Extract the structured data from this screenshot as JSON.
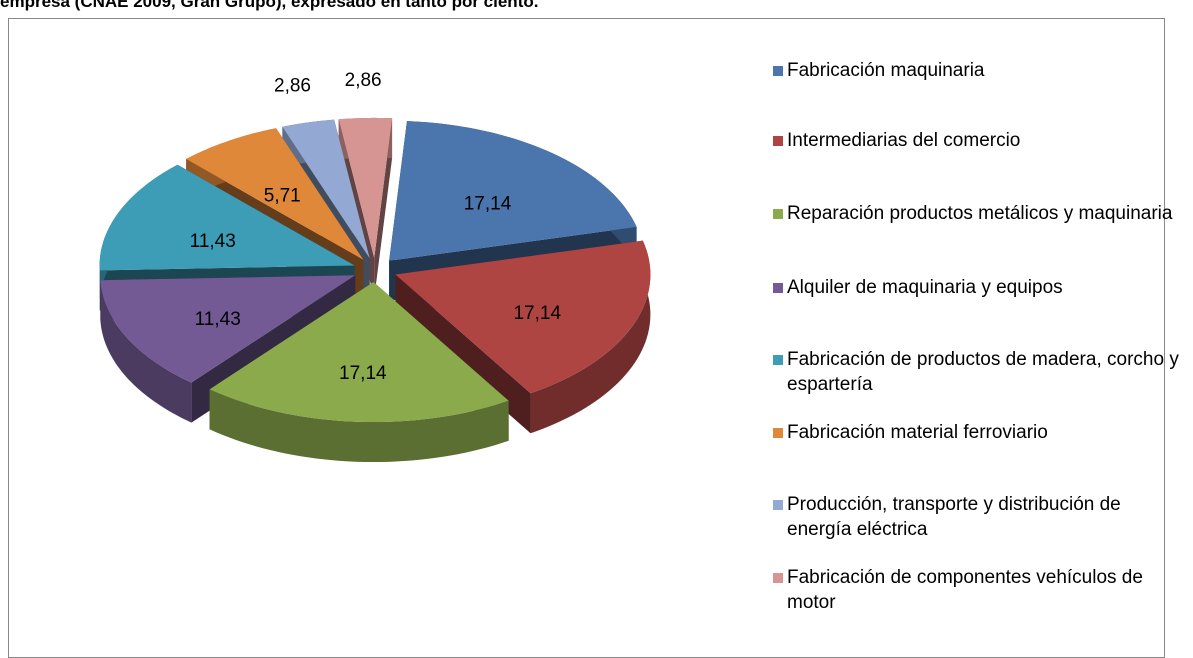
{
  "chart_data": {
    "type": "pie",
    "title": "empresa (CNAE 2009, Gran Grupo), expresado en tanto por ciento.",
    "categories": [
      "Fabricación maquinaria",
      "Intermediarias del comercio",
      "Reparación productos metálicos y maquinaria",
      "Alquiler de  maquinaria y equipos",
      "Fabricación de productos de madera, corcho y espartería",
      "Fabricación material ferroviario",
      "Producción, transporte y distribución de energía eléctrica",
      "Fabricación de componentes vehículos de motor"
    ],
    "values": [
      17.14,
      17.14,
      17.14,
      11.43,
      11.43,
      5.71,
      2.86,
      2.86
    ],
    "value_labels": [
      "17,14",
      "17,14",
      "17,14",
      "11,43",
      "11,43",
      "5,71",
      "2,86",
      "2,86"
    ],
    "colors": [
      "#4a75ad",
      "#ae4542",
      "#8aaa4b",
      "#735a95",
      "#3d9cb6",
      "#e0883a",
      "#93a9d3",
      "#d69593"
    ],
    "legend": "right"
  }
}
